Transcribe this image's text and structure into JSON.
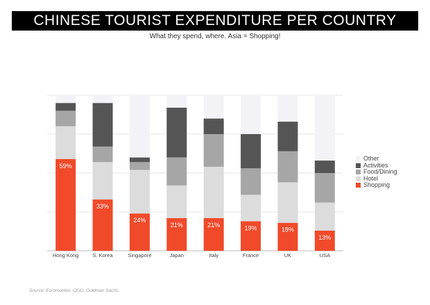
{
  "title": "CHINESE TOURIST EXPENDITURE PER COUNTRY",
  "subtitle": "What they spend, where. Asia = Shopping!",
  "source": "Source: Euromonitor, CEIC, Goldman Sachs",
  "legend": [
    {
      "label": "Other",
      "color": "#f3f3f7"
    },
    {
      "label": "Activities",
      "color": "#555555"
    },
    {
      "label": "Food/Dining",
      "color": "#a6a6a6"
    },
    {
      "label": "Hotel",
      "color": "#dcdcdc"
    },
    {
      "label": "Shopping",
      "color": "#f04a2a"
    }
  ],
  "chart_data": {
    "type": "bar",
    "stacked": true,
    "categories": [
      "Hong Kong",
      "S. Korea",
      "Singapore",
      "Japan",
      "Italy",
      "France",
      "UK",
      "USA"
    ],
    "ylim": [
      0,
      100
    ],
    "grid": true,
    "legend_position": "right",
    "series": [
      {
        "name": "Shopping",
        "color": "#f04a2a",
        "values": [
          59,
          33,
          24,
          21,
          21,
          19,
          18,
          13
        ]
      },
      {
        "name": "Hotel",
        "color": "#dcdcdc",
        "values": [
          21,
          24,
          28,
          21,
          33,
          17,
          26,
          18
        ]
      },
      {
        "name": "Food/Dining",
        "color": "#a6a6a6",
        "values": [
          10,
          10,
          5,
          18,
          21,
          17,
          20,
          19
        ]
      },
      {
        "name": "Activities",
        "color": "#555555",
        "values": [
          5,
          28,
          3,
          32,
          10,
          22,
          19,
          8
        ]
      },
      {
        "name": "Other",
        "color": "#f3f3f7",
        "values": [
          5,
          5,
          40,
          8,
          15,
          25,
          17,
          42
        ]
      }
    ],
    "data_labels": [
      "59%",
      "33%",
      "24%",
      "21%",
      "21%",
      "19%",
      "18%",
      "13%"
    ]
  }
}
